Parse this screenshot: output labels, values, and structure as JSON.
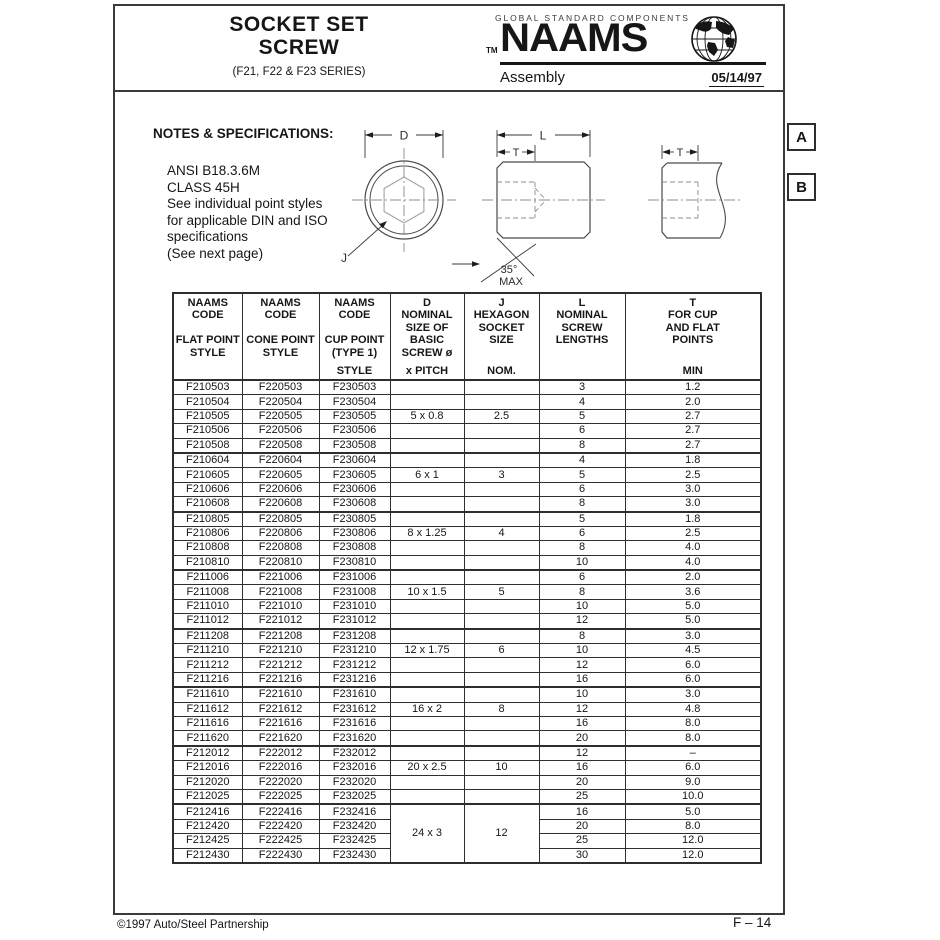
{
  "header": {
    "title_line1": "SOCKET SET",
    "title_line2": "SCREW",
    "subtitle": "(F21, F22 & F23 SERIES)",
    "brand": {
      "tagline": "GLOBAL STANDARD COMPONENTS",
      "tm": "TM",
      "name": "NAAMS",
      "section_label": "Assembly",
      "date": "05/14/97"
    }
  },
  "notes": {
    "heading": "NOTES & SPECIFICATIONS:",
    "lines": [
      "ANSI B18.3.6M",
      "CLASS 45H",
      "See individual point styles",
      "for applicable DIN and ISO",
      "specifications",
      "(See next page)"
    ]
  },
  "diagram": {
    "labels": {
      "d": "D",
      "j": "J",
      "l": "L",
      "t": "T",
      "angle": "35°",
      "angle_max": "MAX"
    }
  },
  "zone_markers": [
    {
      "label": "A"
    },
    {
      "label": "B"
    }
  ],
  "table": {
    "columns": [
      {
        "top": [
          "NAAMS",
          "CODE",
          "",
          "FLAT POINT",
          "STYLE"
        ],
        "bottom": ""
      },
      {
        "top": [
          "NAAMS",
          "CODE",
          "",
          "CONE POINT",
          "STYLE"
        ],
        "bottom": ""
      },
      {
        "top": [
          "NAAMS",
          "CODE",
          "",
          "CUP POINT",
          "(TYPE 1)"
        ],
        "bottom": "STYLE"
      },
      {
        "top": [
          "D",
          "NOMINAL",
          "SIZE OF",
          "BASIC",
          "SCREW ø"
        ],
        "bottom": "x PITCH"
      },
      {
        "top": [
          "J",
          "HEXAGON",
          "SOCKET",
          "SIZE"
        ],
        "bottom": "NOM."
      },
      {
        "top": [
          "L",
          "NOMINAL",
          "SCREW",
          "LENGTHS"
        ],
        "bottom": ""
      },
      {
        "top": [
          "T",
          "FOR CUP",
          "AND FLAT",
          "POINTS"
        ],
        "bottom": "MIN"
      }
    ],
    "groups": [
      {
        "rows": [
          {
            "flat": "F210503",
            "cone": "F220503",
            "cup": "F230503",
            "d": "",
            "j": "",
            "l": "3",
            "t": "1.2"
          },
          {
            "flat": "F210504",
            "cone": "F220504",
            "cup": "F230504",
            "d": "",
            "j": "",
            "l": "4",
            "t": "2.0"
          },
          {
            "flat": "F210505",
            "cone": "F220505",
            "cup": "F230505",
            "d": "5 x 0.8",
            "j": "2.5",
            "l": "5",
            "t": "2.7"
          },
          {
            "flat": "F210506",
            "cone": "F220506",
            "cup": "F230506",
            "d": "",
            "j": "",
            "l": "6",
            "t": "2.7"
          },
          {
            "flat": "F210508",
            "cone": "F220508",
            "cup": "F230508",
            "d": "",
            "j": "",
            "l": "8",
            "t": "2.7"
          }
        ]
      },
      {
        "rows": [
          {
            "flat": "F210604",
            "cone": "F220604",
            "cup": "F230604",
            "d": "",
            "j": "",
            "l": "4",
            "t": "1.8"
          },
          {
            "flat": "F210605",
            "cone": "F220605",
            "cup": "F230605",
            "d": "6 x 1",
            "j": "3",
            "l": "5",
            "t": "2.5"
          },
          {
            "flat": "F210606",
            "cone": "F220606",
            "cup": "F230606",
            "d": "",
            "j": "",
            "l": "6",
            "t": "3.0"
          },
          {
            "flat": "F210608",
            "cone": "F220608",
            "cup": "F230608",
            "d": "",
            "j": "",
            "l": "8",
            "t": "3.0"
          }
        ]
      },
      {
        "rows": [
          {
            "flat": "F210805",
            "cone": "F220805",
            "cup": "F230805",
            "d": "",
            "j": "",
            "l": "5",
            "t": "1.8"
          },
          {
            "flat": "F210806",
            "cone": "F220806",
            "cup": "F230806",
            "d": "8 x 1.25",
            "j": "4",
            "l": "6",
            "t": "2.5"
          },
          {
            "flat": "F210808",
            "cone": "F220808",
            "cup": "F230808",
            "d": "",
            "j": "",
            "l": "8",
            "t": "4.0"
          },
          {
            "flat": "F210810",
            "cone": "F220810",
            "cup": "F230810",
            "d": "",
            "j": "",
            "l": "10",
            "t": "4.0"
          }
        ]
      },
      {
        "rows": [
          {
            "flat": "F211006",
            "cone": "F221006",
            "cup": "F231006",
            "d": "",
            "j": "",
            "l": "6",
            "t": "2.0"
          },
          {
            "flat": "F211008",
            "cone": "F221008",
            "cup": "F231008",
            "d": "10 x 1.5",
            "j": "5",
            "l": "8",
            "t": "3.6"
          },
          {
            "flat": "F211010",
            "cone": "F221010",
            "cup": "F231010",
            "d": "",
            "j": "",
            "l": "10",
            "t": "5.0"
          },
          {
            "flat": "F211012",
            "cone": "F221012",
            "cup": "F231012",
            "d": "",
            "j": "",
            "l": "12",
            "t": "5.0"
          }
        ]
      },
      {
        "rows": [
          {
            "flat": "F211208",
            "cone": "F221208",
            "cup": "F231208",
            "d": "",
            "j": "",
            "l": "8",
            "t": "3.0"
          },
          {
            "flat": "F211210",
            "cone": "F221210",
            "cup": "F231210",
            "d": "12 x 1.75",
            "j": "6",
            "l": "10",
            "t": "4.5"
          },
          {
            "flat": "F211212",
            "cone": "F221212",
            "cup": "F231212",
            "d": "",
            "j": "",
            "l": "12",
            "t": "6.0"
          },
          {
            "flat": "F211216",
            "cone": "F221216",
            "cup": "F231216",
            "d": "",
            "j": "",
            "l": "16",
            "t": "6.0"
          }
        ]
      },
      {
        "rows": [
          {
            "flat": "F211610",
            "cone": "F221610",
            "cup": "F231610",
            "d": "",
            "j": "",
            "l": "10",
            "t": "3.0"
          },
          {
            "flat": "F211612",
            "cone": "F221612",
            "cup": "F231612",
            "d": "16 x 2",
            "j": "8",
            "l": "12",
            "t": "4.8"
          },
          {
            "flat": "F211616",
            "cone": "F221616",
            "cup": "F231616",
            "d": "",
            "j": "",
            "l": "16",
            "t": "8.0"
          },
          {
            "flat": "F211620",
            "cone": "F221620",
            "cup": "F231620",
            "d": "",
            "j": "",
            "l": "20",
            "t": "8.0"
          }
        ]
      },
      {
        "rows": [
          {
            "flat": "F212012",
            "cone": "F222012",
            "cup": "F232012",
            "d": "",
            "j": "",
            "l": "12",
            "t": "–"
          },
          {
            "flat": "F212016",
            "cone": "F222016",
            "cup": "F232016",
            "d": "20 x 2.5",
            "j": "10",
            "l": "16",
            "t": "6.0"
          },
          {
            "flat": "F212020",
            "cone": "F222020",
            "cup": "F232020",
            "d": "",
            "j": "",
            "l": "20",
            "t": "9.0"
          },
          {
            "flat": "F212025",
            "cone": "F222025",
            "cup": "F232025",
            "d": "",
            "j": "",
            "l": "25",
            "t": "10.0"
          }
        ]
      },
      {
        "merged": true,
        "d": "24 x 3",
        "j": "12",
        "rows": [
          {
            "flat": "F212416",
            "cone": "F222416",
            "cup": "F232416",
            "l": "16",
            "t": "5.0"
          },
          {
            "flat": "F212420",
            "cone": "F222420",
            "cup": "F232420",
            "l": "20",
            "t": "8.0"
          },
          {
            "flat": "F212425",
            "cone": "F222425",
            "cup": "F232425",
            "l": "25",
            "t": "12.0"
          },
          {
            "flat": "F212430",
            "cone": "F222430",
            "cup": "F232430",
            "l": "30",
            "t": "12.0"
          }
        ]
      }
    ]
  },
  "footer": {
    "copyright": "©1997 Auto/Steel Partnership",
    "page_number": "F – 14"
  },
  "colors": {
    "ink": "#2e2e2e",
    "paper": "#ffffff"
  }
}
